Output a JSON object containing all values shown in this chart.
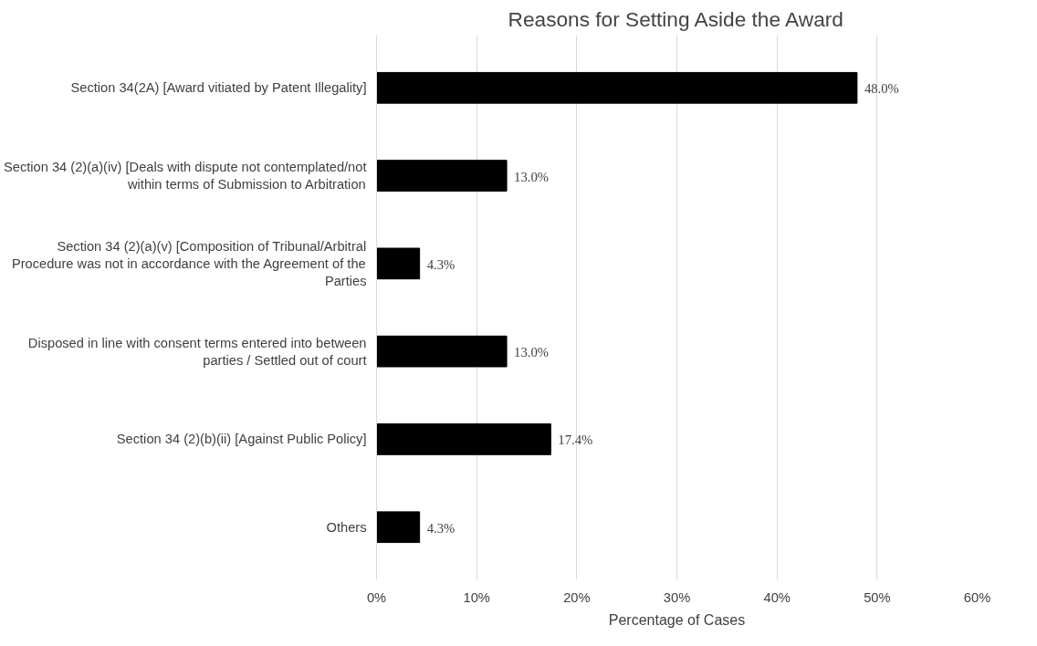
{
  "chart_data": {
    "type": "bar",
    "orientation": "horizontal",
    "title": "Reasons for Setting Aside the Award",
    "xlabel": "Percentage of Cases",
    "categories": [
      "Section 34(2A) [Award vitiated by Patent Illegality]",
      "Section 34 (2)(a)(iv) [Deals with dispute not contemplated/not within terms of Submission to Arbitration",
      "Section 34 (2)(a)(v) [Composition of Tribunal/Arbitral Procedure was not in accordance with the Agreement of the Parties",
      "Disposed in line with consent terms entered into between parties / Settled out of court",
      "Section 34 (2)(b)(ii) [Against Public Policy]",
      "Others"
    ],
    "values": [
      48.0,
      13.0,
      4.3,
      13.0,
      17.4,
      4.3
    ],
    "value_labels": [
      "48.0%",
      "13.0%",
      "4.3%",
      "13.0%",
      "17.4%",
      "4.3%"
    ],
    "color": "#000000",
    "xlim": [
      0,
      60
    ],
    "xticks": [
      {
        "value": 0,
        "label": "0%"
      },
      {
        "value": 10,
        "label": "10%"
      },
      {
        "value": 20,
        "label": "20%"
      },
      {
        "value": 30,
        "label": "30%"
      },
      {
        "value": 40,
        "label": "40%"
      },
      {
        "value": 50,
        "label": "50%"
      },
      {
        "value": 60,
        "label": "60%"
      }
    ],
    "grid": "x"
  }
}
